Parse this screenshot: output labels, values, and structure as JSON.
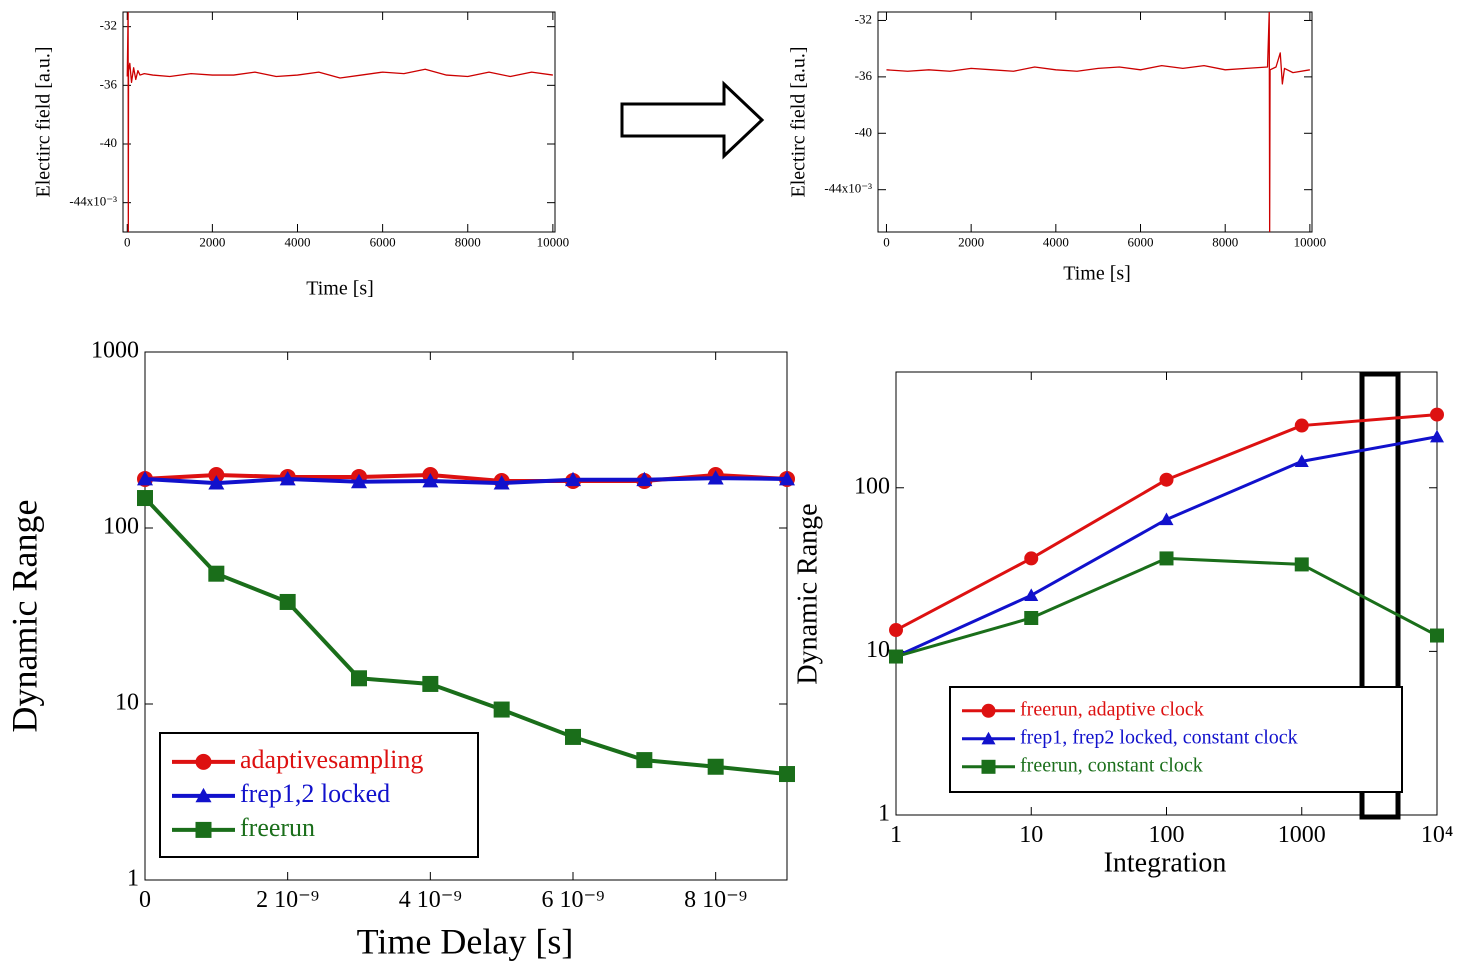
{
  "chart_data": [
    {
      "type": "line",
      "x_label": "Time [s]",
      "y_label": "Electirc field [a.u.]",
      "x": [
        0,
        20,
        25,
        30,
        60,
        100,
        150,
        200,
        250,
        300,
        400,
        600,
        1000,
        1500,
        2000,
        2500,
        3000,
        3500,
        4000,
        4500,
        5000,
        5500,
        6000,
        6500,
        7000,
        7500,
        8000,
        8500,
        9000,
        9500,
        10000
      ],
      "series": [
        {
          "color": "#cc0000",
          "values": [
            -35.4,
            -31,
            -46,
            -35,
            -34.5,
            -35.8,
            -34.8,
            -35.6,
            -35,
            -35.3,
            -35.2,
            -35.3,
            -35.4,
            -35.2,
            -35.3,
            -35.3,
            -35.1,
            -35.4,
            -35.3,
            -35.1,
            -35.5,
            -35.3,
            -35.1,
            -35.2,
            -34.9,
            -35.3,
            -35.4,
            -35.1,
            -35.4,
            -35.1,
            -35.3
          ]
        }
      ],
      "xlim": [
        -100,
        10050
      ],
      "ylim": [
        -46,
        -31
      ],
      "xticks": [
        0,
        2000,
        4000,
        6000,
        8000,
        10000
      ],
      "yticks": [
        -32,
        -36,
        -40,
        {
          "value": -44,
          "label": "-44x10⁻³"
        }
      ]
    },
    {
      "type": "line",
      "x_label": "Time [s]",
      "y_label": "Electirc field [a.u.]",
      "x": [
        0,
        500,
        1000,
        1500,
        2000,
        2500,
        3000,
        3500,
        4000,
        4500,
        5000,
        5500,
        6000,
        6500,
        7000,
        7500,
        8000,
        8500,
        9000,
        9040,
        9050,
        9060,
        9200,
        9300,
        9350,
        9400,
        9600,
        10000
      ],
      "series": [
        {
          "color": "#cc0000",
          "values": [
            -35.5,
            -35.6,
            -35.5,
            -35.6,
            -35.4,
            -35.5,
            -35.6,
            -35.3,
            -35.5,
            -35.6,
            -35.4,
            -35.3,
            -35.5,
            -35.2,
            -35.4,
            -35.2,
            -35.5,
            -35.4,
            -35.3,
            -31.4,
            -47,
            -35.5,
            -35.3,
            -34.3,
            -36.5,
            -35.4,
            -35.7,
            -35.5
          ]
        }
      ],
      "xlim": [
        -200,
        10050
      ],
      "ylim": [
        -47,
        -31.4
      ],
      "xticks": [
        0,
        2000,
        4000,
        6000,
        8000,
        10000
      ],
      "yticks": [
        -32,
        -36,
        -40,
        {
          "value": -44,
          "label": "-44x10⁻³"
        }
      ]
    },
    {
      "type": "line",
      "x_label": "Time Delay [s]",
      "y_label": "Dynamic Range",
      "y_log": true,
      "legend": "lower left",
      "x": [
        0,
        1e-09,
        2e-09,
        3e-09,
        4e-09,
        5e-09,
        6e-09,
        7e-09,
        8e-09,
        9e-09
      ],
      "series": [
        {
          "name": "adaptivesampling",
          "color": "#dd1111",
          "marker": "circle",
          "values": [
            190,
            200,
            195,
            195,
            200,
            185,
            185,
            185,
            200,
            190
          ]
        },
        {
          "name": "frep1,2 locked",
          "color": "#1111cc",
          "marker": "triangle",
          "values": [
            190,
            180,
            190,
            183,
            185,
            180,
            188,
            188,
            192,
            190
          ]
        },
        {
          "name": "freerun",
          "color": "#1a6e1a",
          "marker": "square",
          "values": [
            148,
            55,
            38,
            14,
            13,
            9.3,
            6.5,
            4.8,
            4.4,
            4.0
          ]
        }
      ],
      "xlim": [
        0,
        9e-09
      ],
      "ylim": [
        1,
        1000
      ],
      "xticks": [
        0,
        {
          "value": 2e-09,
          "label": "2 10⁻⁹"
        },
        {
          "value": 4e-09,
          "label": "4 10⁻⁹"
        },
        {
          "value": 6e-09,
          "label": "6 10⁻⁹"
        },
        {
          "value": 8e-09,
          "label": "8 10⁻⁹"
        }
      ],
      "yticks": [
        1,
        10,
        100,
        1000
      ]
    },
    {
      "type": "line",
      "x_label": "Integration",
      "y_label": "Dynamic Range",
      "x_log": true,
      "y_log": true,
      "legend": "lower center",
      "x": [
        1,
        10,
        100,
        1000,
        10000
      ],
      "series": [
        {
          "name": "freerun, adaptive clock",
          "color": "#dd1111",
          "marker": "circle",
          "values": [
            13.5,
            37,
            112,
            240,
            280
          ]
        },
        {
          "name": "frep1, frep2 locked, constant clock",
          "color": "#1111cc",
          "marker": "triangle",
          "values": [
            9.3,
            22,
            64,
            145,
            205
          ]
        },
        {
          "name": "freerun, constant clock",
          "color": "#1a6e1a",
          "marker": "square",
          "values": [
            9.3,
            16,
            37,
            34,
            12.5
          ]
        }
      ],
      "xlim": [
        1,
        10000
      ],
      "ylim": [
        1,
        510
      ],
      "xticks": [
        1,
        10,
        100,
        1000,
        {
          "value": 10000,
          "label": "10⁴"
        }
      ],
      "yticks": [
        1,
        10,
        100
      ]
    }
  ]
}
